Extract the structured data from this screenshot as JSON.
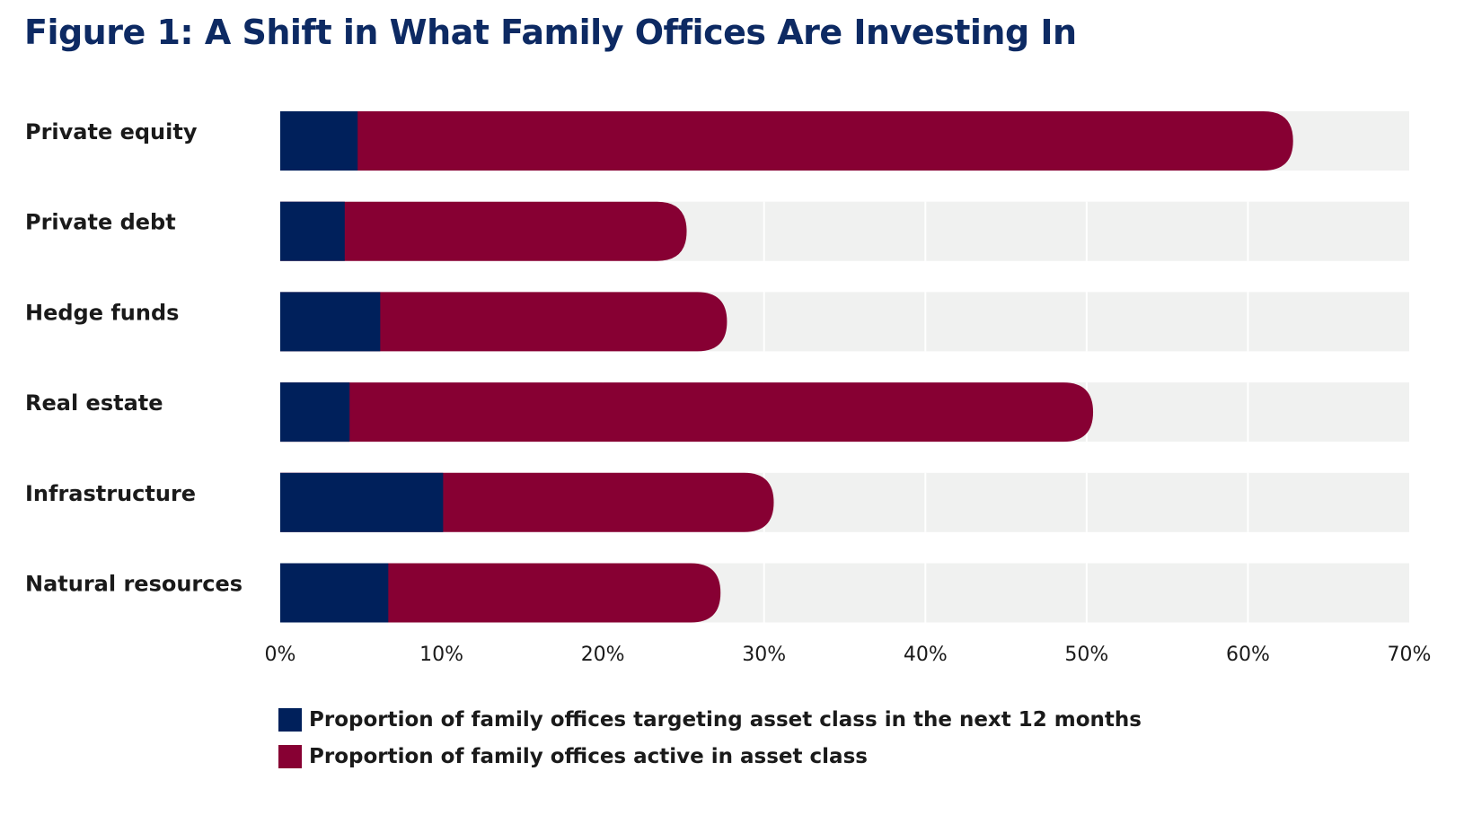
{
  "title": "Figure 1: A Shift in What Family Offices Are Investing In",
  "colors": {
    "targeting": "#00205b",
    "active": "#870033",
    "track": "#f0f1f0",
    "title": "#0d2a63"
  },
  "chart_data": {
    "type": "bar",
    "orientation": "horizontal",
    "title": "Figure 1: A Shift in What Family Offices Are Investing In",
    "categories": [
      "Private equity",
      "Private debt",
      "Hedge funds",
      "Real estate",
      "Infrastructure",
      "Natural resources"
    ],
    "series": [
      {
        "name": "Proportion of family offices targeting asset class in the next 12 months",
        "color": "#00205b",
        "values": [
          4.8,
          4.0,
          6.2,
          4.3,
          10.1,
          6.7
        ]
      },
      {
        "name": "Proportion of family offices active in asset class",
        "color": "#870033",
        "values": [
          62.8,
          25.2,
          27.7,
          50.4,
          30.6,
          27.3
        ]
      }
    ],
    "xlim": [
      0,
      70
    ],
    "xticks": [
      "0%",
      "10%",
      "20%",
      "30%",
      "40%",
      "50%",
      "60%",
      "70%"
    ],
    "xlabel": "",
    "ylabel": "",
    "grid": true,
    "legend_placement": "bottom"
  }
}
